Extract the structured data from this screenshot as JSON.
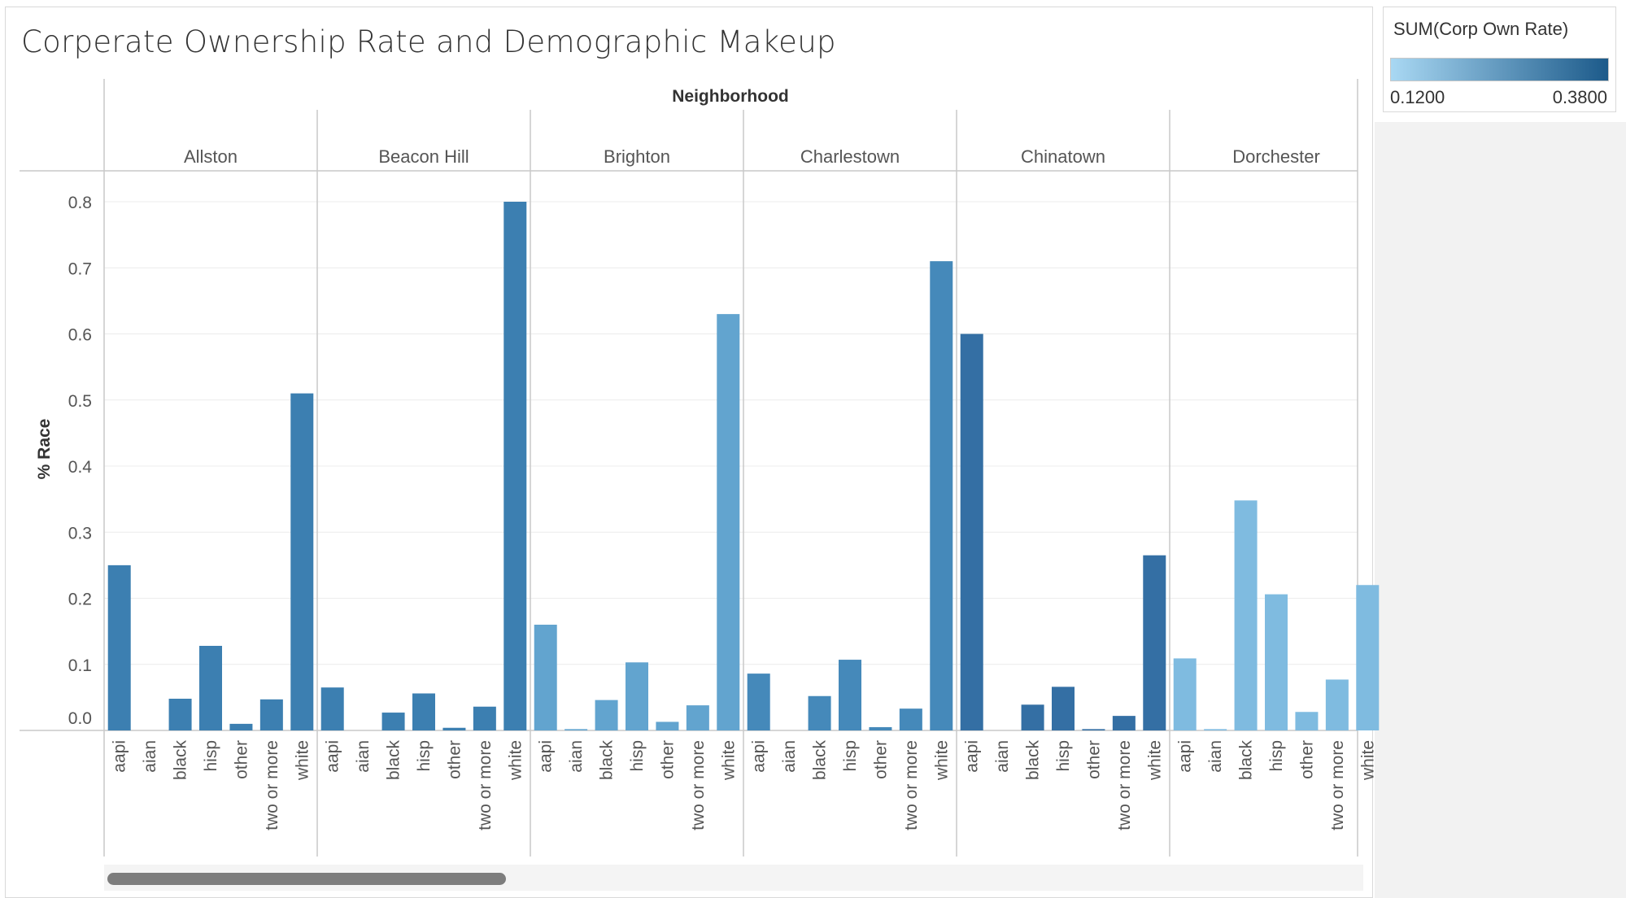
{
  "title": "Corperate Ownership Rate and Demographic Makeup",
  "legend": {
    "title": "SUM(Corp Own Rate)",
    "min_label": "0.1200",
    "max_label": "0.3800",
    "min_value": 0.12,
    "max_value": 0.38,
    "color_low": "#a9d8f3",
    "color_high": "#1c5a8a"
  },
  "chart_data": {
    "type": "bar",
    "title": "Corperate Ownership Rate and Demographic Makeup",
    "column_header": "Neighborhood",
    "ylabel": "% Race",
    "ylim": [
      0.0,
      0.8
    ],
    "y_ticks": [
      "0.0",
      "0.1",
      "0.2",
      "0.3",
      "0.4",
      "0.5",
      "0.6",
      "0.7",
      "0.8"
    ],
    "categories": [
      "aapi",
      "aian",
      "black",
      "hisp",
      "other",
      "two or more",
      "white"
    ],
    "color_by": "SUM(Corp Own Rate)",
    "grid": true,
    "legend_position": "top-right",
    "panels": [
      {
        "name": "Allston",
        "values": [
          0.25,
          0.0,
          0.048,
          0.128,
          0.01,
          0.047,
          0.51
        ],
        "corp_rate": 0.3,
        "color": "#3c7fb1"
      },
      {
        "name": "Beacon Hill",
        "values": [
          0.065,
          0.0,
          0.027,
          0.056,
          0.004,
          0.036,
          0.8
        ],
        "corp_rate": 0.3,
        "color": "#3c7fb1"
      },
      {
        "name": "Brighton",
        "values": [
          0.16,
          0.002,
          0.046,
          0.103,
          0.013,
          0.038,
          0.63
        ],
        "corp_rate": 0.23,
        "color": "#62a4cf"
      },
      {
        "name": "Charlestown",
        "values": [
          0.086,
          0.0,
          0.052,
          0.107,
          0.005,
          0.033,
          0.71
        ],
        "corp_rate": 0.28,
        "color": "#4589ba"
      },
      {
        "name": "Chinatown",
        "values": [
          0.6,
          0.0,
          0.039,
          0.066,
          0.002,
          0.022,
          0.265
        ],
        "corp_rate": 0.33,
        "color": "#346fa4"
      },
      {
        "name": "Dorchester",
        "values": [
          0.109,
          0.002,
          0.348,
          0.206,
          0.028,
          0.077,
          0.22
        ],
        "corp_rate": 0.19,
        "color": "#7fbbe0"
      }
    ]
  }
}
